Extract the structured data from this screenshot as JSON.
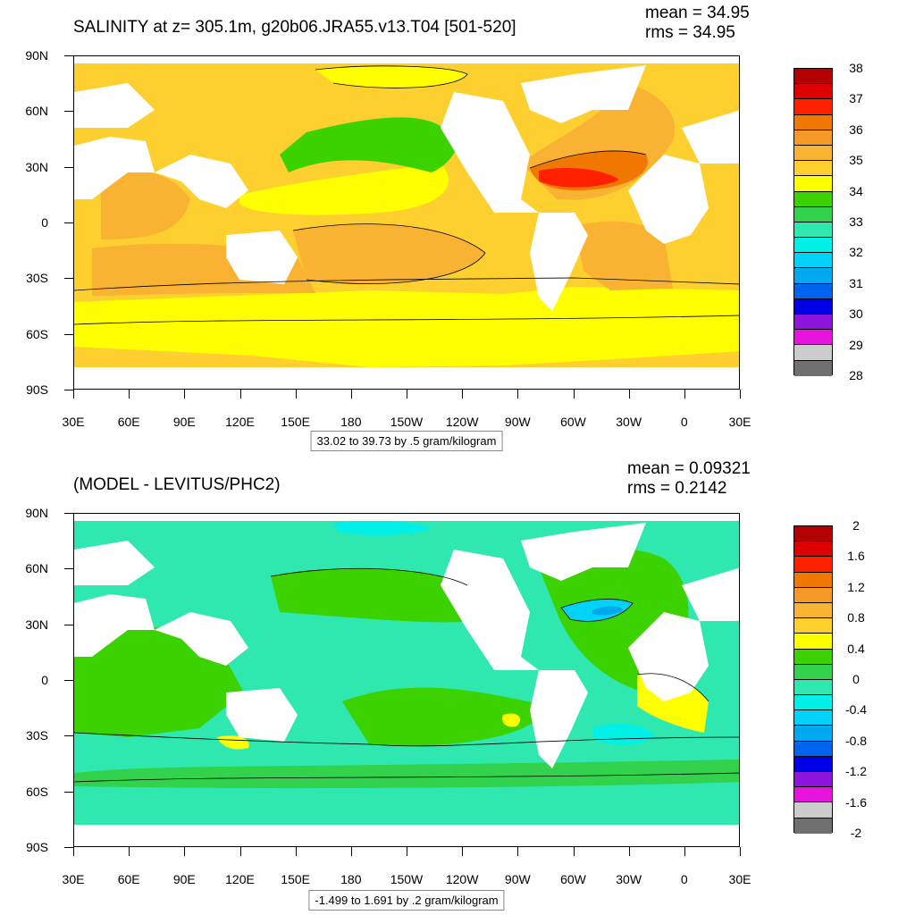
{
  "map_type": "global ocean salinity contour maps (two panels)",
  "x_ticks": [
    "30E",
    "60E",
    "90E",
    "120E",
    "150E",
    "180",
    "150W",
    "120W",
    "90W",
    "60W",
    "30W",
    "0",
    "30E"
  ],
  "y_ticks": [
    "90N",
    "60N",
    "30N",
    "0",
    "30S",
    "60S",
    "90S"
  ],
  "panels": [
    {
      "id": "salinity",
      "title": "SALINITY at z= 305.1m, g20b06.JRA55.v13.T04 [501-520]",
      "mean_text": "mean = 34.95",
      "rms_text": "rms = 34.95",
      "contour_info": "33.02 to 39.73 by .5 gram/kilogram",
      "colorbar": {
        "labels": [
          "38",
          "37",
          "36",
          "35",
          "34",
          "33",
          "32",
          "31",
          "30",
          "29",
          "28"
        ],
        "colors": [
          "#b40000",
          "#dc0000",
          "#ff2000",
          "#f07800",
          "#f59a28",
          "#f9b232",
          "#fdd030",
          "#ffff00",
          "#3cd200",
          "#32d24c",
          "#2ee8b0",
          "#00f0e8",
          "#00d2f8",
          "#00a8f0",
          "#0064f0",
          "#0000e6",
          "#8c14dc",
          "#e614dc",
          "#cccccc",
          "#707070"
        ]
      },
      "data_range": [
        33.02,
        39.73
      ]
    },
    {
      "id": "difference",
      "title": "(MODEL - LEVITUS/PHC2)",
      "mean_text": "mean = 0.09321",
      "rms_text": "rms = 0.2142",
      "contour_info": "-1.499 to 1.691 by .2 gram/kilogram",
      "colorbar": {
        "labels": [
          "2",
          "1.6",
          "1.2",
          "0.8",
          "0.4",
          "0",
          "-0.4",
          "-0.8",
          "-1.2",
          "-1.6",
          "-2"
        ],
        "colors": [
          "#b40000",
          "#dc0000",
          "#ff2000",
          "#f07800",
          "#f59a28",
          "#f9b232",
          "#fdd030",
          "#ffff00",
          "#3cd200",
          "#32d24c",
          "#2ee8b0",
          "#00f0e8",
          "#00d2f8",
          "#00a8f0",
          "#0064f0",
          "#0000e6",
          "#8c14dc",
          "#e614dc",
          "#cccccc",
          "#707070"
        ]
      },
      "data_range": [
        -1.499,
        1.691
      ]
    }
  ]
}
